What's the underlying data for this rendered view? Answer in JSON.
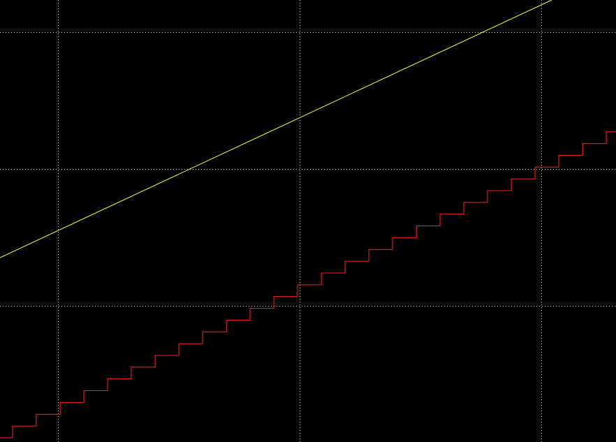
{
  "chart_data": {
    "type": "line",
    "xlim": [
      -0.24,
      2.309
    ],
    "ylim": [
      -0.995,
      2.235
    ],
    "xticks": [
      0,
      1,
      2
    ],
    "yticks": [
      0,
      1,
      2
    ],
    "grid": true,
    "background": "#000000",
    "grid_color": "#d0d0d0",
    "series": [
      {
        "type": "line",
        "color": "#ffff33",
        "x": [
          -0.24,
          2.043
        ],
        "values": [
          0.352,
          2.235
        ]
      },
      {
        "type": "step",
        "color": "#ff2020",
        "x": [
          -0.24,
          -0.188,
          -0.09,
          0.009,
          0.107,
          0.205,
          0.303,
          0.402,
          0.5,
          0.598,
          0.697,
          0.795,
          0.893,
          0.991,
          1.09,
          1.188,
          1.286,
          1.384,
          1.483,
          1.581,
          1.679,
          1.777,
          1.876,
          1.974,
          2.072,
          2.171,
          2.269
        ],
        "values": [
          -0.964,
          -0.878,
          -0.792,
          -0.706,
          -0.62,
          -0.534,
          -0.448,
          -0.362,
          -0.276,
          -0.19,
          -0.104,
          -0.018,
          0.068,
          0.154,
          0.24,
          0.326,
          0.412,
          0.498,
          0.584,
          0.67,
          0.756,
          0.842,
          0.928,
          1.014,
          1.1,
          1.186,
          1.272
        ]
      }
    ]
  }
}
